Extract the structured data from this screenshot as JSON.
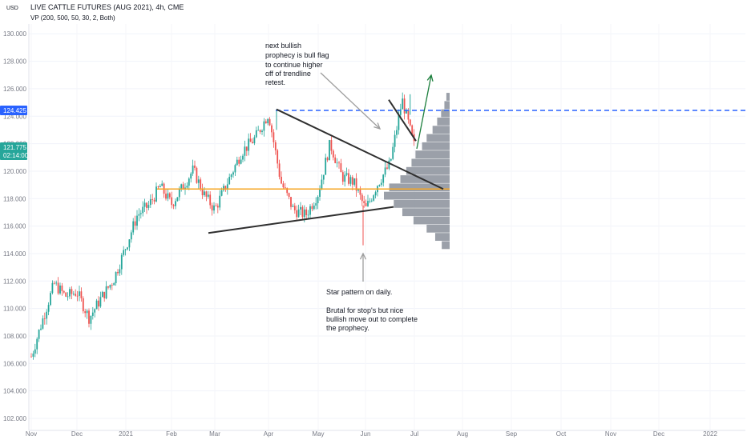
{
  "header": {
    "title": "LIVE CATTLE FUTURES (AUG 2021), 4h, CME",
    "indicator": "VP (200, 500, 50, 30, 2, Both)",
    "currency": "USD"
  },
  "price_tags": [
    {
      "label": "124.425",
      "color": "#2962ff"
    },
    {
      "label": "121.775",
      "color": "#26a69a",
      "sub_label": "02:14:00"
    }
  ],
  "annotations": {
    "top_note": [
      "next bullish",
      "prophecy is bull flag",
      "to continue higher",
      "off of trendline",
      "retest."
    ],
    "bottom_note": [
      "Star pattern on daily.",
      "",
      "Brutal for stop's but nice",
      "bullish move out to complete",
      "the prophecy."
    ]
  },
  "colors": {
    "up": "#26a69a",
    "down": "#ef5350",
    "hline": "#2962ff",
    "poc": "#f6a623",
    "volume_profile": "#8a8f9a",
    "trendline": "#2f2f2f",
    "arrow_green": "#1b7e3c",
    "arrow_gray": "#9e9e9e"
  },
  "chart_data": {
    "type": "candlestick",
    "y_axis": {
      "ticks": [
        102.0,
        104.0,
        106.0,
        108.0,
        110.0,
        112.0,
        114.0,
        116.0,
        118.0,
        120.0,
        122.0,
        124.0,
        126.0,
        128.0,
        130.0
      ],
      "range": [
        101.6,
        130.5
      ]
    },
    "x_axis": {
      "ticks": [
        "Nov",
        "Dec",
        "2021",
        "Feb",
        "Mar",
        "Apr",
        "May",
        "Jun",
        "Jul",
        "Aug",
        "Sep",
        "Oct",
        "Nov",
        "Dec",
        "2022"
      ]
    },
    "price_path": [
      [
        "Nov",
        106.5
      ],
      [
        "Nov+",
        109.2
      ],
      [
        "Nov++",
        111.8
      ],
      [
        "Nov+++",
        110.9
      ],
      [
        "Dec",
        111.2
      ],
      [
        "Dec+",
        109.3
      ],
      [
        "Dec++",
        110.8
      ],
      [
        "Dec+++",
        112.1
      ],
      [
        "2021",
        114.5
      ],
      [
        "2021+",
        116.8
      ],
      [
        "2021++",
        117.5
      ],
      [
        "2021+++",
        118.9
      ],
      [
        "Feb",
        117.6
      ],
      [
        "Feb+",
        118.8
      ],
      [
        "Feb++",
        120.1
      ],
      [
        "Feb+++",
        118.3
      ],
      [
        "Mar",
        117.2
      ],
      [
        "Mar+",
        119.3
      ],
      [
        "Mar++",
        121.4
      ],
      [
        "Mar+++",
        122.4
      ],
      [
        "Apr",
        124.2
      ],
      [
        "Apr+",
        119.2
      ],
      [
        "Apr++",
        117.2
      ],
      [
        "Apr+++",
        116.8
      ],
      [
        "May",
        118.4
      ],
      [
        "May+",
        122.0
      ],
      [
        "May++",
        119.6
      ],
      [
        "May+++",
        119.2
      ],
      [
        "Jun",
        117.2
      ],
      [
        "Jun+",
        119.1
      ],
      [
        "Jun++",
        120.5
      ],
      [
        "Jun+++",
        125.2
      ],
      [
        "Jul",
        121.8
      ]
    ],
    "lows": [
      {
        "x": "Jun",
        "y": 114.6
      }
    ],
    "highs": [
      {
        "x": "Apr",
        "y": 124.5
      },
      {
        "x": "Jun+++",
        "y": 125.6
      }
    ],
    "levels": [
      {
        "name": "resistance",
        "y": 124.425,
        "style": "dashed"
      },
      {
        "name": "poc",
        "y": 118.7,
        "style": "solid"
      }
    ],
    "trendlines": [
      {
        "name": "upper",
        "from": [
          "Apr",
          124.5
        ],
        "to": [
          "Jul++",
          118.7
        ]
      },
      {
        "name": "lower",
        "from": [
          "Feb+++",
          115.5
        ],
        "to": [
          "Jun++",
          117.4
        ]
      },
      {
        "name": "flag",
        "from": [
          "Jun+++",
          125.2
        ],
        "to": [
          "Jul",
          122.2
        ]
      }
    ],
    "volume_profile": {
      "levels": [
        114.6,
        115.2,
        115.8,
        116.4,
        117.0,
        117.6,
        118.2,
        118.8,
        119.4,
        120.0,
        120.6,
        121.2,
        121.8,
        122.4,
        123.0,
        123.6,
        124.2,
        124.8,
        125.4
      ],
      "volumes": [
        0.12,
        0.22,
        0.35,
        0.55,
        0.72,
        0.85,
        1.0,
        0.92,
        0.75,
        0.66,
        0.58,
        0.52,
        0.42,
        0.35,
        0.26,
        0.19,
        0.13,
        0.08,
        0.05
      ]
    }
  }
}
